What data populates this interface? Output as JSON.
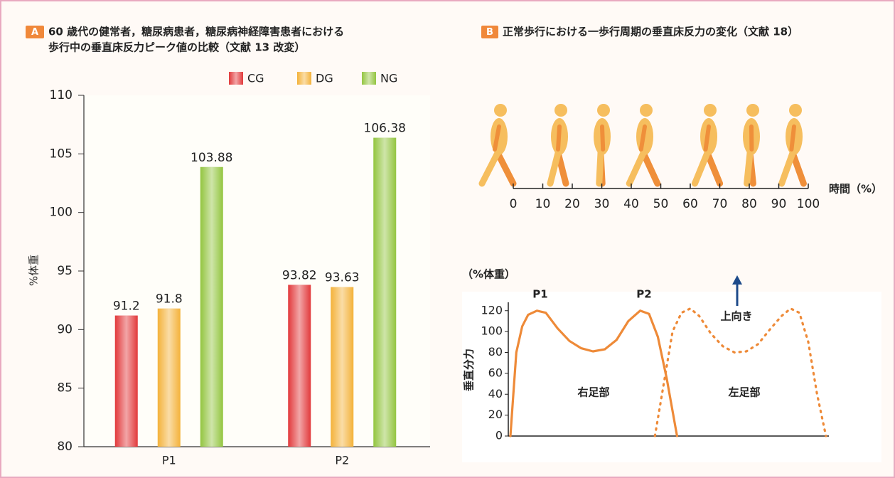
{
  "chart_data": [
    {
      "type": "bar",
      "badge": "A",
      "title": [
        "60 歳代の健常者，糖尿病患者，糖尿病神経障害患者における",
        "歩行中の垂直床反力ピーク値の比較（文献 13 改変）"
      ],
      "ylabel": "%体重",
      "categories": [
        "P1",
        "P2"
      ],
      "series": [
        {
          "name": "CG",
          "color": "#e2393b",
          "values": [
            91.2,
            93.82
          ]
        },
        {
          "name": "DG",
          "color": "#f4b23a",
          "values": [
            91.8,
            93.63
          ]
        },
        {
          "name": "NG",
          "color": "#93c540",
          "values": [
            103.88,
            106.38
          ]
        }
      ],
      "ylim": [
        80,
        110
      ],
      "yticks": [
        80,
        85,
        90,
        95,
        100,
        105,
        110
      ],
      "legend": "top"
    },
    {
      "type": "timeline",
      "badge": "B",
      "title": "正常歩行における一歩行周期の垂直床反力の変化（文献 18）",
      "xlabel": "時間（%）",
      "xlim": [
        0,
        100
      ],
      "xticks": [
        0,
        10,
        20,
        30,
        40,
        50,
        60,
        70,
        80,
        90,
        100
      ]
    },
    {
      "type": "line",
      "unit": "（%体重）",
      "ylabel": "垂直分力",
      "annotations": [
        "P1",
        "P2",
        "上向き"
      ],
      "series": [
        {
          "name": "右足部",
          "color": "#ee8a38",
          "dash": false,
          "x": [
            0,
            1,
            2,
            4,
            6,
            9,
            12,
            16,
            20,
            24,
            28,
            32,
            36,
            40,
            44,
            47,
            50,
            53,
            56.5
          ],
          "values": [
            0,
            40,
            80,
            105,
            116,
            120,
            118,
            103,
            91,
            84,
            81,
            83,
            92,
            110,
            120,
            117,
            95,
            55,
            0
          ]
        },
        {
          "name": "左足部",
          "color": "#ee8a38",
          "dash": true,
          "x": [
            49,
            52,
            55,
            58,
            61,
            64,
            68,
            72,
            76,
            80,
            84,
            88,
            92,
            95,
            98,
            101,
            104,
            107
          ],
          "values": [
            0,
            50,
            100,
            118,
            122,
            115,
            98,
            86,
            80,
            81,
            88,
            102,
            115,
            122,
            118,
            90,
            40,
            0
          ]
        }
      ],
      "xlim": [
        0,
        108
      ],
      "ylim": [
        0,
        128
      ],
      "yticks": [
        0,
        20,
        40,
        60,
        80,
        100,
        120
      ]
    }
  ]
}
